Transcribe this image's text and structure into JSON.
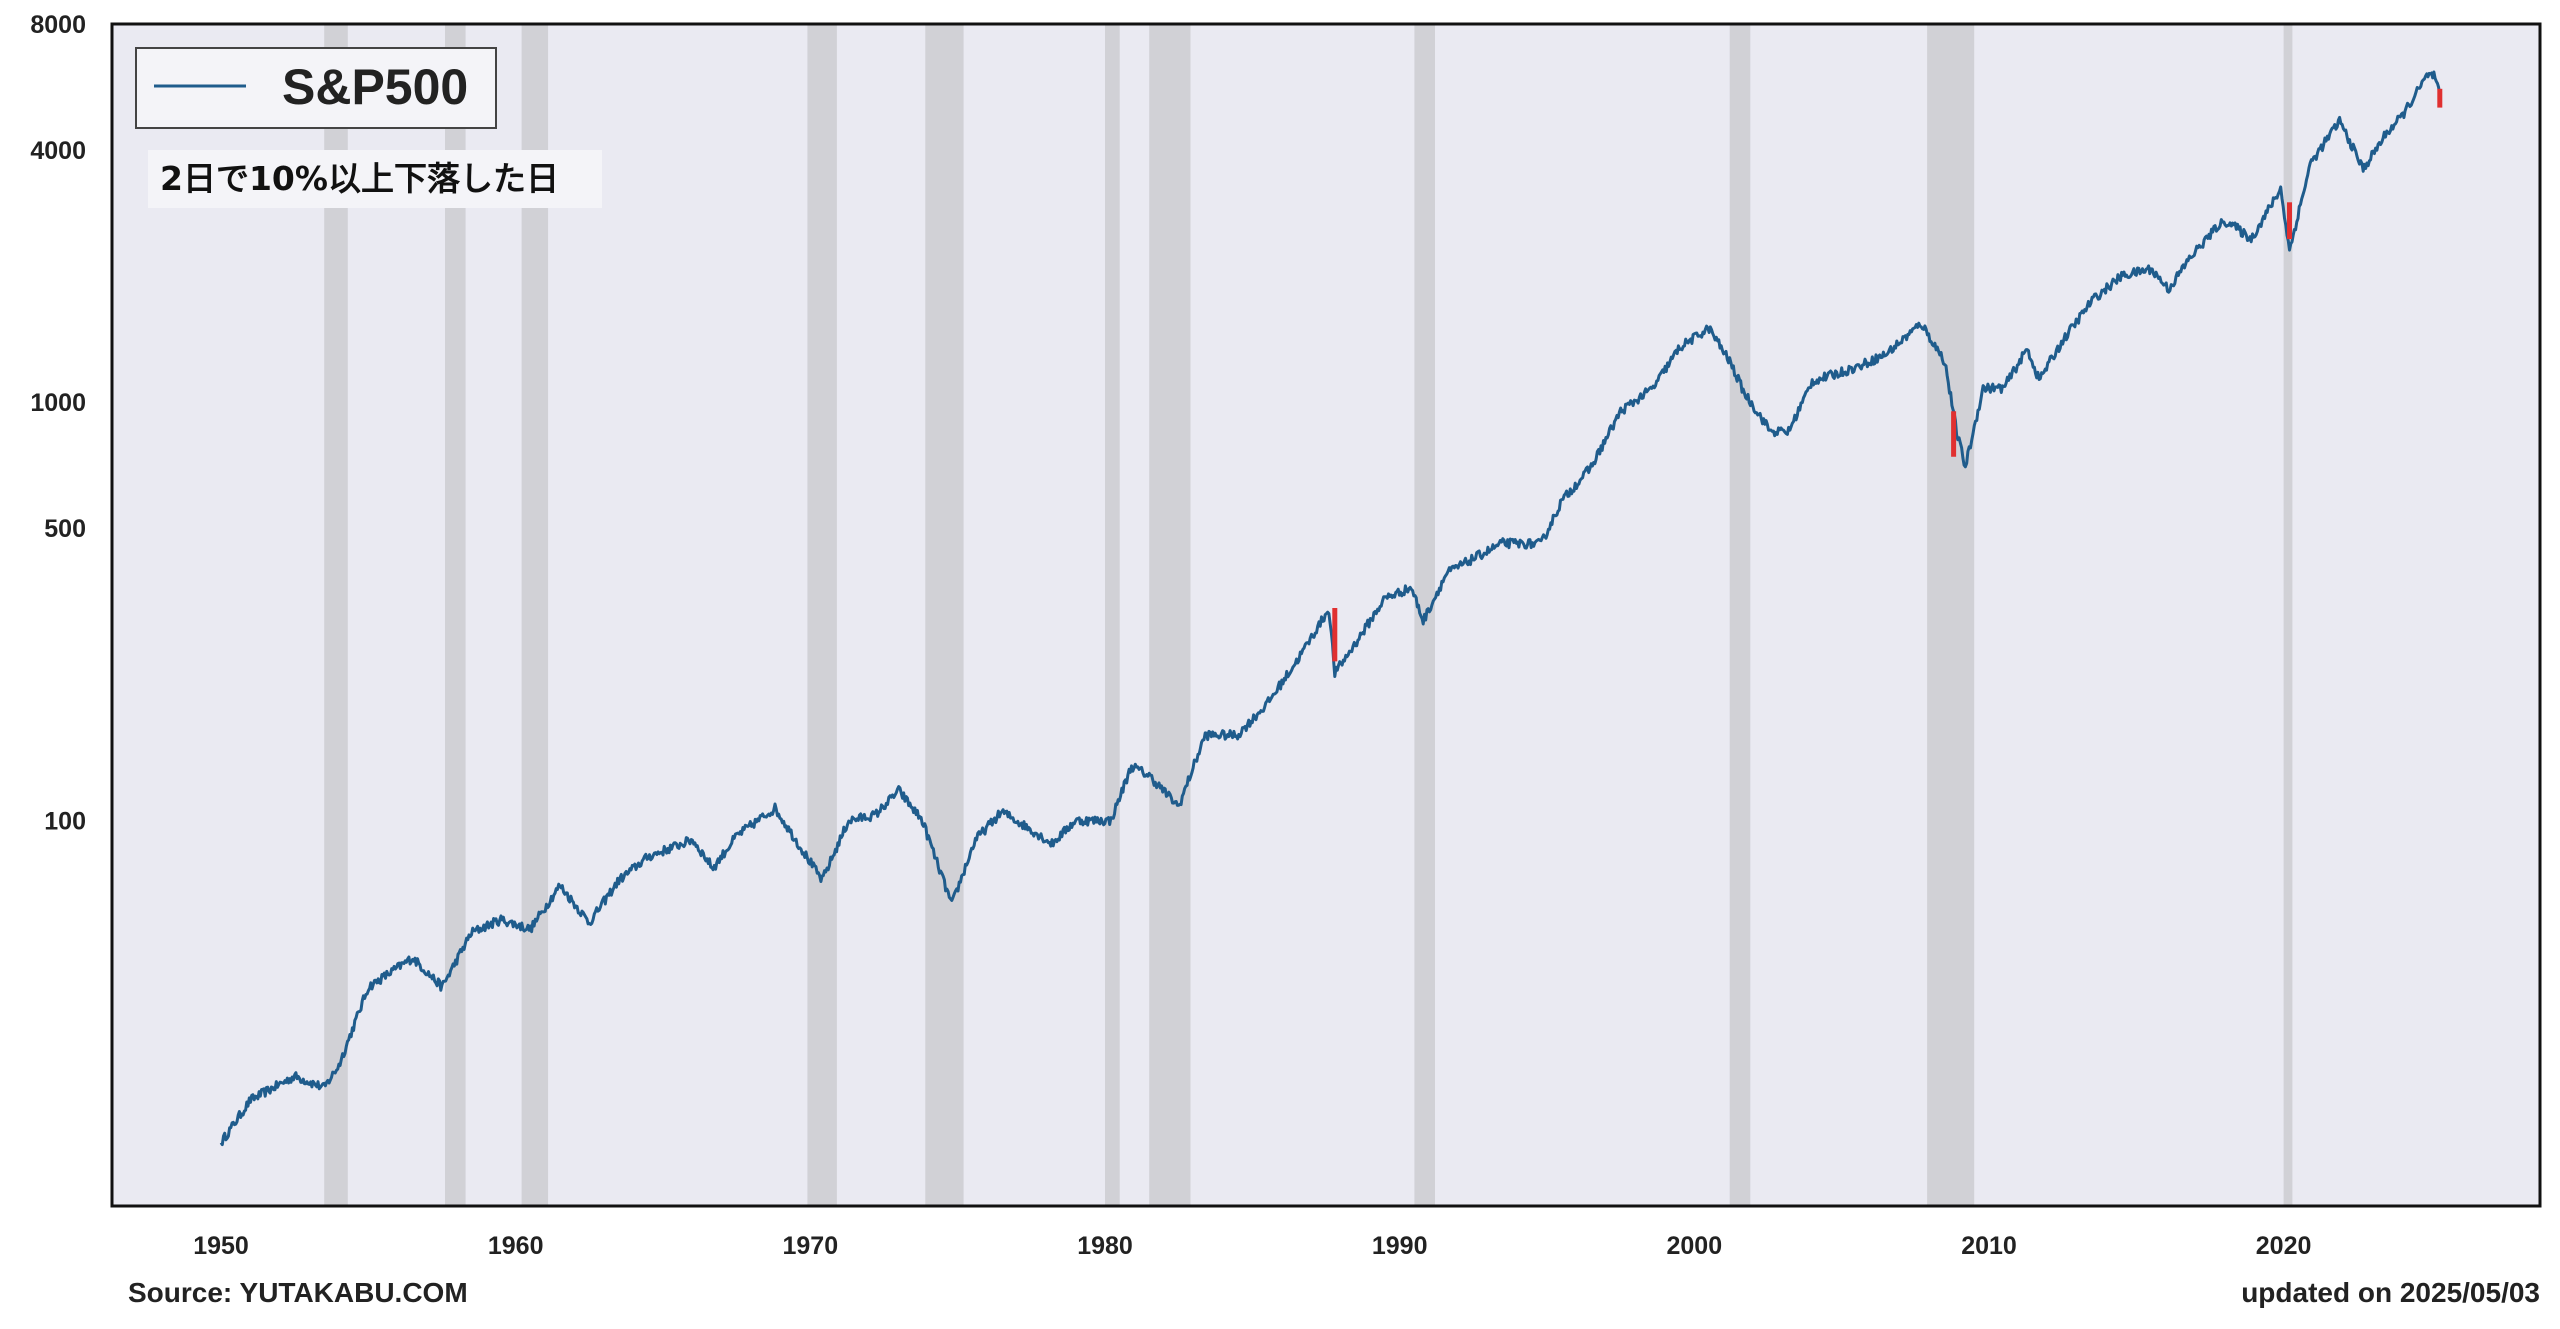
{
  "chart_data": {
    "type": "line",
    "title": "",
    "xlabel": "",
    "ylabel": "",
    "yscale": "log",
    "xlim": [
      1946.3,
      2028.7
    ],
    "ylim": [
      12,
      8000
    ],
    "grid": false,
    "legend_position": "top-left",
    "x_ticks": [
      1950,
      1960,
      1970,
      1980,
      1990,
      2000,
      2010,
      2020
    ],
    "y_ticks": [
      100,
      500,
      1000,
      4000,
      8000
    ],
    "series": [
      {
        "name": "S&P500",
        "color": "#1f5c8c",
        "points": [
          [
            1950.0,
            17
          ],
          [
            1951.0,
            21.5
          ],
          [
            1952.5,
            24.5
          ],
          [
            1953.5,
            23
          ],
          [
            1954.0,
            26
          ],
          [
            1955.0,
            40
          ],
          [
            1956.5,
            47
          ],
          [
            1957.5,
            40
          ],
          [
            1958.5,
            54
          ],
          [
            1959.5,
            58
          ],
          [
            1960.5,
            55
          ],
          [
            1961.5,
            70
          ],
          [
            1962.5,
            57
          ],
          [
            1963.5,
            72
          ],
          [
            1964.5,
            82
          ],
          [
            1966.0,
            90
          ],
          [
            1966.7,
            77
          ],
          [
            1967.5,
            92
          ],
          [
            1968.8,
            107
          ],
          [
            1970.4,
            72
          ],
          [
            1971.3,
            100
          ],
          [
            1972.2,
            103
          ],
          [
            1973.0,
            118
          ],
          [
            1973.8,
            100
          ],
          [
            1974.8,
            63
          ],
          [
            1975.6,
            90
          ],
          [
            1976.5,
            105
          ],
          [
            1977.5,
            95
          ],
          [
            1978.2,
            88
          ],
          [
            1979.0,
            100
          ],
          [
            1980.2,
            100
          ],
          [
            1980.9,
            135
          ],
          [
            1981.5,
            128
          ],
          [
            1982.5,
            108
          ],
          [
            1983.4,
            160
          ],
          [
            1984.5,
            160
          ],
          [
            1985.5,
            190
          ],
          [
            1986.5,
            240
          ],
          [
            1987.6,
            320
          ],
          [
            1987.8,
            225
          ],
          [
            1988.5,
            265
          ],
          [
            1989.5,
            340
          ],
          [
            1990.4,
            360
          ],
          [
            1990.8,
            300
          ],
          [
            1991.6,
            390
          ],
          [
            1992.7,
            430
          ],
          [
            1993.5,
            460
          ],
          [
            1994.8,
            458
          ],
          [
            1995.5,
            580
          ],
          [
            1996.5,
            700
          ],
          [
            1997.5,
            950
          ],
          [
            1998.6,
            1080
          ],
          [
            1999.5,
            1350
          ],
          [
            2000.5,
            1500
          ],
          [
            2001.2,
            1250
          ],
          [
            2001.7,
            1050
          ],
          [
            2002.6,
            850
          ],
          [
            2003.2,
            850
          ],
          [
            2004.0,
            1120
          ],
          [
            2005.5,
            1210
          ],
          [
            2006.5,
            1300
          ],
          [
            2007.7,
            1540
          ],
          [
            2008.5,
            1250
          ],
          [
            2008.9,
            850
          ],
          [
            2009.2,
            700
          ],
          [
            2009.8,
            1080
          ],
          [
            2010.5,
            1080
          ],
          [
            2011.3,
            1340
          ],
          [
            2011.7,
            1130
          ],
          [
            2012.5,
            1400
          ],
          [
            2013.5,
            1750
          ],
          [
            2014.5,
            2000
          ],
          [
            2015.5,
            2080
          ],
          [
            2016.1,
            1860
          ],
          [
            2016.8,
            2200
          ],
          [
            2017.8,
            2650
          ],
          [
            2018.1,
            2700
          ],
          [
            2018.9,
            2450
          ],
          [
            2019.9,
            3230
          ],
          [
            2020.2,
            2300
          ],
          [
            2020.9,
            3700
          ],
          [
            2021.9,
            4700
          ],
          [
            2022.7,
            3600
          ],
          [
            2023.5,
            4400
          ],
          [
            2024.0,
            4800
          ],
          [
            2024.9,
            6050
          ],
          [
            2025.1,
            6000
          ],
          [
            2025.3,
            5400
          ]
        ]
      }
    ],
    "highlight_segments": [
      {
        "color": "#e03030",
        "x": 1987.8,
        "y": [
          240,
          322
        ]
      },
      {
        "color": "#e03030",
        "x": 2008.8,
        "y": [
          740,
          950
        ]
      },
      {
        "color": "#e03030",
        "x": 2020.2,
        "y": [
          2450,
          3000
        ]
      },
      {
        "color": "#e03030",
        "x": 2025.3,
        "y": [
          5050,
          5600
        ]
      }
    ],
    "recessions": [
      [
        1953.5,
        1954.3
      ],
      [
        1957.6,
        1958.3
      ],
      [
        1960.2,
        1961.1
      ],
      [
        1969.9,
        1970.9
      ],
      [
        1973.9,
        1975.2
      ],
      [
        1980.0,
        1980.5
      ],
      [
        1981.5,
        1982.9
      ],
      [
        1990.5,
        1991.2
      ],
      [
        2001.2,
        2001.9
      ],
      [
        2007.9,
        2009.5
      ],
      [
        2020.0,
        2020.3
      ]
    ],
    "colors": {
      "plot_background": "#eaeaf2",
      "recession_band": "#c8c8cc",
      "line": "#1f5c8c",
      "highlight": "#e03030"
    }
  },
  "legend": {
    "label": "S&P500"
  },
  "annotation": "2日で10%以上下落した日",
  "footer": {
    "source": "Source: YUTAKABU.COM",
    "updated": "updated on 2025/05/03"
  }
}
